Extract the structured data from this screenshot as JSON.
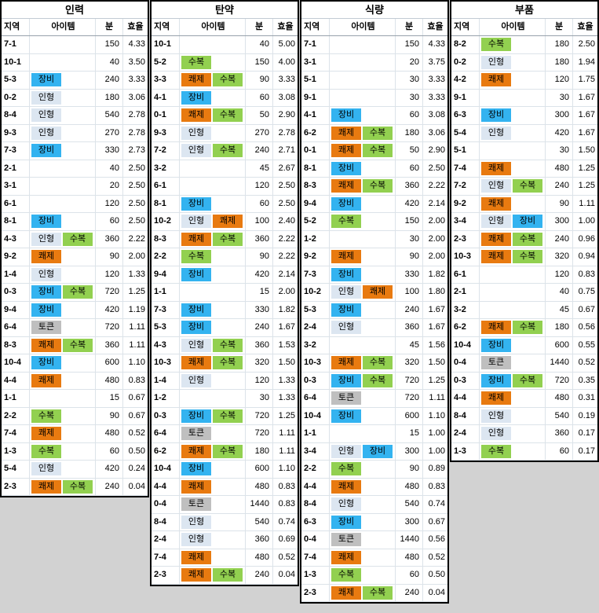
{
  "sheet": {
    "background_color": "#D2D2D2",
    "item_types": {
      "장비": {
        "label": "장비",
        "color": "#33B3F0",
        "name": "equipment"
      },
      "인형": {
        "label": "인형",
        "color": "#DCE6F1",
        "name": "doll"
      },
      "수복": {
        "label": "수복",
        "color": "#92D050",
        "name": "repair"
      },
      "쾌제": {
        "label": "쾌제",
        "color": "#E87A10",
        "name": "contract"
      },
      "토큰": {
        "label": "토큰",
        "color": "#BFBFBF",
        "name": "token"
      }
    },
    "tables": [
      {
        "id": "manpower",
        "title": "인력",
        "headers": [
          "지역",
          "아이템",
          "분",
          "효율"
        ],
        "rows": [
          [
            "7-1",
            [],
            "150",
            "4.33"
          ],
          [
            "10-1",
            [],
            "40",
            "3.50"
          ],
          [
            "5-3",
            [
              "장비"
            ],
            "240",
            "3.33"
          ],
          [
            "0-2",
            [
              "인형"
            ],
            "180",
            "3.06"
          ],
          [
            "8-4",
            [
              "인형"
            ],
            "540",
            "2.78"
          ],
          [
            "9-3",
            [
              "인형"
            ],
            "270",
            "2.78"
          ],
          [
            "7-3",
            [
              "장비"
            ],
            "330",
            "2.73"
          ],
          [
            "2-1",
            [],
            "40",
            "2.50"
          ],
          [
            "3-1",
            [],
            "20",
            "2.50"
          ],
          [
            "6-1",
            [],
            "120",
            "2.50"
          ],
          [
            "8-1",
            [
              "장비"
            ],
            "60",
            "2.50"
          ],
          [
            "4-3",
            [
              "인형",
              "수복"
            ],
            "360",
            "2.22"
          ],
          [
            "9-2",
            [
              "쾌제"
            ],
            "90",
            "2.00"
          ],
          [
            "1-4",
            [
              "인형"
            ],
            "120",
            "1.33"
          ],
          [
            "0-3",
            [
              "장비",
              "수복"
            ],
            "720",
            "1.25"
          ],
          [
            "9-4",
            [
              "장비"
            ],
            "420",
            "1.19"
          ],
          [
            "6-4",
            [
              "토큰"
            ],
            "720",
            "1.11"
          ],
          [
            "8-3",
            [
              "쾌제",
              "수복"
            ],
            "360",
            "1.11"
          ],
          [
            "10-4",
            [
              "장비"
            ],
            "600",
            "1.10"
          ],
          [
            "4-4",
            [
              "쾌제"
            ],
            "480",
            "0.83"
          ],
          [
            "1-1",
            [],
            "15",
            "0.67"
          ],
          [
            "2-2",
            [
              "수복"
            ],
            "90",
            "0.67"
          ],
          [
            "7-4",
            [
              "쾌제"
            ],
            "480",
            "0.52"
          ],
          [
            "1-3",
            [
              "수복"
            ],
            "60",
            "0.50"
          ],
          [
            "5-4",
            [
              "인형"
            ],
            "420",
            "0.24"
          ],
          [
            "2-3",
            [
              "쾌제",
              "수복"
            ],
            "240",
            "0.04"
          ]
        ]
      },
      {
        "id": "ammunition",
        "title": "탄약",
        "headers": [
          "지역",
          "아이템",
          "분",
          "효율"
        ],
        "rows": [
          [
            "10-1",
            [],
            "40",
            "5.00"
          ],
          [
            "5-2",
            [
              "수복"
            ],
            "150",
            "4.00"
          ],
          [
            "3-3",
            [
              "쾌제",
              "수복"
            ],
            "90",
            "3.33"
          ],
          [
            "4-1",
            [
              "장비"
            ],
            "60",
            "3.08"
          ],
          [
            "0-1",
            [
              "쾌제",
              "수복"
            ],
            "50",
            "2.90"
          ],
          [
            "9-3",
            [
              "인형"
            ],
            "270",
            "2.78"
          ],
          [
            "7-2",
            [
              "인형",
              "수복"
            ],
            "240",
            "2.71"
          ],
          [
            "3-2",
            [],
            "45",
            "2.67"
          ],
          [
            "6-1",
            [],
            "120",
            "2.50"
          ],
          [
            "8-1",
            [
              "장비"
            ],
            "60",
            "2.50"
          ],
          [
            "10-2",
            [
              "인형",
              "쾌제"
            ],
            "100",
            "2.40"
          ],
          [
            "8-3",
            [
              "쾌제",
              "수복"
            ],
            "360",
            "2.22"
          ],
          [
            "2-2",
            [
              "수복"
            ],
            "90",
            "2.22"
          ],
          [
            "9-4",
            [
              "장비"
            ],
            "420",
            "2.14"
          ],
          [
            "1-1",
            [],
            "15",
            "2.00"
          ],
          [
            "7-3",
            [
              "장비"
            ],
            "330",
            "1.82"
          ],
          [
            "5-3",
            [
              "장비"
            ],
            "240",
            "1.67"
          ],
          [
            "4-3",
            [
              "인형",
              "수복"
            ],
            "360",
            "1.53"
          ],
          [
            "10-3",
            [
              "쾌제",
              "수복"
            ],
            "320",
            "1.50"
          ],
          [
            "1-4",
            [
              "인형"
            ],
            "120",
            "1.33"
          ],
          [
            "1-2",
            [],
            "30",
            "1.33"
          ],
          [
            "0-3",
            [
              "장비",
              "수복"
            ],
            "720",
            "1.25"
          ],
          [
            "6-4",
            [
              "토큰"
            ],
            "720",
            "1.11"
          ],
          [
            "6-2",
            [
              "쾌제",
              "수복"
            ],
            "180",
            "1.11"
          ],
          [
            "10-4",
            [
              "장비"
            ],
            "600",
            "1.10"
          ],
          [
            "4-4",
            [
              "쾌제"
            ],
            "480",
            "0.83"
          ],
          [
            "0-4",
            [
              "토큰"
            ],
            "1440",
            "0.83"
          ],
          [
            "8-4",
            [
              "인형"
            ],
            "540",
            "0.74"
          ],
          [
            "2-4",
            [
              "인형"
            ],
            "360",
            "0.69"
          ],
          [
            "7-4",
            [
              "쾌제"
            ],
            "480",
            "0.52"
          ],
          [
            "2-3",
            [
              "쾌제",
              "수복"
            ],
            "240",
            "0.04"
          ]
        ]
      },
      {
        "id": "rations",
        "title": "식량",
        "headers": [
          "지역",
          "아이템",
          "분",
          "효율"
        ],
        "rows": [
          [
            "7-1",
            [],
            "150",
            "4.33"
          ],
          [
            "3-1",
            [],
            "20",
            "3.75"
          ],
          [
            "5-1",
            [],
            "30",
            "3.33"
          ],
          [
            "9-1",
            [],
            "30",
            "3.33"
          ],
          [
            "4-1",
            [
              "장비"
            ],
            "60",
            "3.08"
          ],
          [
            "6-2",
            [
              "쾌제",
              "수복"
            ],
            "180",
            "3.06"
          ],
          [
            "0-1",
            [
              "쾌제",
              "수복"
            ],
            "50",
            "2.90"
          ],
          [
            "8-1",
            [
              "장비"
            ],
            "60",
            "2.50"
          ],
          [
            "8-3",
            [
              "쾌제",
              "수복"
            ],
            "360",
            "2.22"
          ],
          [
            "9-4",
            [
              "장비"
            ],
            "420",
            "2.14"
          ],
          [
            "5-2",
            [
              "수복"
            ],
            "150",
            "2.00"
          ],
          [
            "1-2",
            [],
            "30",
            "2.00"
          ],
          [
            "9-2",
            [
              "쾌제"
            ],
            "90",
            "2.00"
          ],
          [
            "7-3",
            [
              "장비"
            ],
            "330",
            "1.82"
          ],
          [
            "10-2",
            [
              "인형",
              "쾌제"
            ],
            "100",
            "1.80"
          ],
          [
            "5-3",
            [
              "장비"
            ],
            "240",
            "1.67"
          ],
          [
            "2-4",
            [
              "인형"
            ],
            "360",
            "1.67"
          ],
          [
            "3-2",
            [],
            "45",
            "1.56"
          ],
          [
            "10-3",
            [
              "쾌제",
              "수복"
            ],
            "320",
            "1.50"
          ],
          [
            "0-3",
            [
              "장비",
              "수복"
            ],
            "720",
            "1.25"
          ],
          [
            "6-4",
            [
              "토큰"
            ],
            "720",
            "1.11"
          ],
          [
            "10-4",
            [
              "장비"
            ],
            "600",
            "1.10"
          ],
          [
            "1-1",
            [],
            "15",
            "1.00"
          ],
          [
            "3-4",
            [
              "인형",
              "장비"
            ],
            "300",
            "1.00"
          ],
          [
            "2-2",
            [
              "수복"
            ],
            "90",
            "0.89"
          ],
          [
            "4-4",
            [
              "쾌제"
            ],
            "480",
            "0.83"
          ],
          [
            "8-4",
            [
              "인형"
            ],
            "540",
            "0.74"
          ],
          [
            "6-3",
            [
              "장비"
            ],
            "300",
            "0.67"
          ],
          [
            "0-4",
            [
              "토큰"
            ],
            "1440",
            "0.56"
          ],
          [
            "7-4",
            [
              "쾌제"
            ],
            "480",
            "0.52"
          ],
          [
            "1-3",
            [
              "수복"
            ],
            "60",
            "0.50"
          ],
          [
            "2-3",
            [
              "쾌제",
              "수복"
            ],
            "240",
            "0.04"
          ]
        ]
      },
      {
        "id": "parts",
        "title": "부품",
        "headers": [
          "지역",
          "아이템",
          "분",
          "효율"
        ],
        "rows": [
          [
            "8-2",
            [
              "수복"
            ],
            "180",
            "2.50"
          ],
          [
            "0-2",
            [
              "인형"
            ],
            "180",
            "1.94"
          ],
          [
            "4-2",
            [
              "쾌제"
            ],
            "120",
            "1.75"
          ],
          [
            "9-1",
            [],
            "30",
            "1.67"
          ],
          [
            "6-3",
            [
              "장비"
            ],
            "300",
            "1.67"
          ],
          [
            "5-4",
            [
              "인형"
            ],
            "420",
            "1.67"
          ],
          [
            "5-1",
            [],
            "30",
            "1.50"
          ],
          [
            "7-4",
            [
              "쾌제"
            ],
            "480",
            "1.25"
          ],
          [
            "7-2",
            [
              "인형",
              "수복"
            ],
            "240",
            "1.25"
          ],
          [
            "9-2",
            [
              "쾌제"
            ],
            "90",
            "1.11"
          ],
          [
            "3-4",
            [
              "인형",
              "장비"
            ],
            "300",
            "1.00"
          ],
          [
            "2-3",
            [
              "쾌제",
              "수복"
            ],
            "240",
            "0.96"
          ],
          [
            "10-3",
            [
              "쾌제",
              "수복"
            ],
            "320",
            "0.94"
          ],
          [
            "6-1",
            [],
            "120",
            "0.83"
          ],
          [
            "2-1",
            [],
            "40",
            "0.75"
          ],
          [
            "3-2",
            [],
            "45",
            "0.67"
          ],
          [
            "6-2",
            [
              "쾌제",
              "수복"
            ],
            "180",
            "0.56"
          ],
          [
            "10-4",
            [
              "장비"
            ],
            "600",
            "0.55"
          ],
          [
            "0-4",
            [
              "토큰"
            ],
            "1440",
            "0.52"
          ],
          [
            "0-3",
            [
              "장비",
              "수복"
            ],
            "720",
            "0.35"
          ],
          [
            "4-4",
            [
              "쾌제"
            ],
            "480",
            "0.31"
          ],
          [
            "8-4",
            [
              "인형"
            ],
            "540",
            "0.19"
          ],
          [
            "2-4",
            [
              "인형"
            ],
            "360",
            "0.17"
          ],
          [
            "1-3",
            [
              "수복"
            ],
            "60",
            "0.17"
          ]
        ]
      }
    ]
  }
}
